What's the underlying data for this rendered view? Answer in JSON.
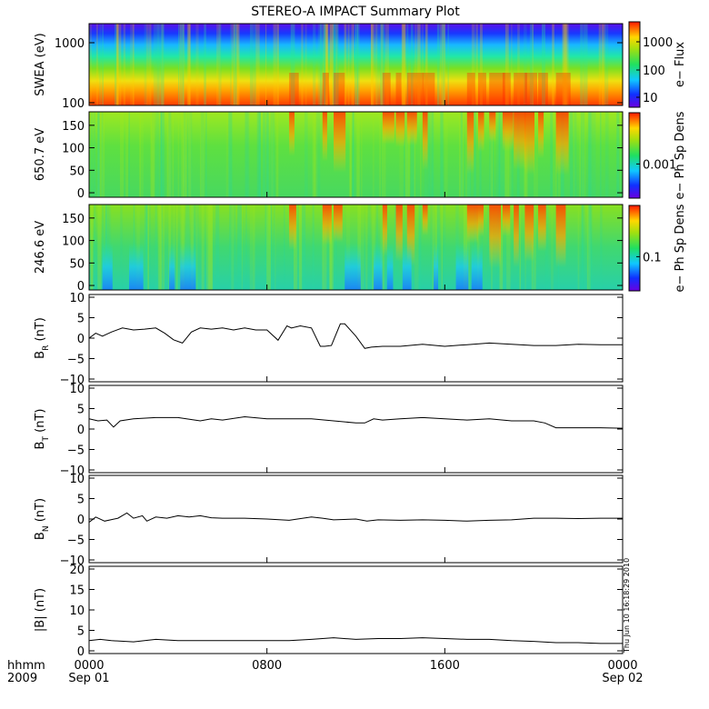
{
  "chart_data": {
    "type": "line",
    "title": "STEREO-A IMPACT Summary Plot",
    "x_axis": {
      "range": [
        "2009-09-01 00:00",
        "2009-09-02 00:00"
      ],
      "ticks": [
        {
          "time": "0000",
          "date": "Sep 01"
        },
        {
          "time": "0800",
          "date": ""
        },
        {
          "time": "1600",
          "date": ""
        },
        {
          "time": "0000",
          "date": "Sep 02"
        }
      ],
      "label_time": "hhmm",
      "label_year": "2009"
    },
    "panels": [
      {
        "type": "heatmap",
        "ylabel": "SWEA (eV)",
        "yscale": "log",
        "ylim": [
          100,
          2000
        ],
        "yticks": [
          "1000",
          "100"
        ],
        "colorbar": {
          "label": "e− Flux",
          "ticks": [
            "1000",
            "100",
            "10"
          ],
          "scale": "log"
        }
      },
      {
        "type": "heatmap",
        "ylabel": "650.7 eV",
        "ylim": [
          0,
          180
        ],
        "yticks": [
          "150",
          "100",
          "50",
          "0"
        ],
        "colorbar": {
          "label": "e− Ph Sp Dens",
          "ticks": [
            "0.001"
          ],
          "scale": "log"
        }
      },
      {
        "type": "heatmap",
        "ylabel": "246.6 eV",
        "ylim": [
          0,
          180
        ],
        "yticks": [
          "150",
          "100",
          "50",
          "0"
        ],
        "colorbar": {
          "label": "e− Ph Sp Dens",
          "ticks": [
            "0.1"
          ],
          "scale": "log"
        }
      },
      {
        "type": "line",
        "ylabel": "B",
        "ylabel_sub": "R",
        "ylabel_unit": " (nT)",
        "ylim": [
          -10,
          10
        ],
        "yticks": [
          "10",
          "5",
          "0",
          "−5",
          "−10"
        ],
        "series": [
          {
            "x": [
              0,
              0.3,
              0.6,
              1,
              1.5,
              2,
              2.5,
              3,
              3.4,
              3.8,
              4.2,
              4.6,
              5,
              5.5,
              6,
              6.5,
              7,
              7.5,
              8,
              8.5,
              8.9,
              9.1,
              9.5,
              10,
              10.4,
              10.6,
              10.9,
              11.3,
              11.5,
              12,
              12.4,
              12.7,
              13.2,
              14,
              15,
              16,
              17,
              18,
              19,
              20,
              21,
              22,
              23,
              24
            ],
            "y": [
              0,
              1.2,
              0.5,
              1.5,
              2.5,
              2,
              2.2,
              2.5,
              1.2,
              -0.4,
              -1.2,
              1.5,
              2.5,
              2.2,
              2.5,
              2,
              2.5,
              2,
              2,
              -0.5,
              3,
              2.5,
              3,
              2.5,
              -2,
              -2,
              -1.8,
              3.5,
              3.5,
              0.5,
              -2.5,
              -2.2,
              -2,
              -2,
              -1.5,
              -2,
              -1.6,
              -1.2,
              -1.5,
              -1.8,
              -1.8,
              -1.5,
              -1.6,
              -1.6
            ]
          }
        ]
      },
      {
        "type": "line",
        "ylabel": "B",
        "ylabel_sub": "T",
        "ylabel_unit": " (nT)",
        "ylim": [
          -10,
          10
        ],
        "yticks": [
          "10",
          "5",
          "0",
          "−5",
          "−10"
        ],
        "series": [
          {
            "x": [
              0,
              0.4,
              0.8,
              1.1,
              1.4,
              2,
              3,
              4,
              5,
              5.5,
              6,
              7,
              8,
              9,
              10,
              11,
              12,
              12.4,
              12.8,
              13.2,
              14,
              15,
              16,
              17,
              18,
              19,
              20,
              20.5,
              21,
              22,
              23,
              24
            ],
            "y": [
              2.5,
              2,
              2.2,
              0.5,
              2,
              2.5,
              2.8,
              2.8,
              2,
              2.5,
              2.2,
              3,
              2.5,
              2.5,
              2.5,
              2,
              1.5,
              1.5,
              2.5,
              2.2,
              2.5,
              2.8,
              2.5,
              2.2,
              2.5,
              2,
              2,
              1.5,
              0.3,
              0.3,
              0.3,
              0.2
            ]
          }
        ]
      },
      {
        "type": "line",
        "ylabel": "B",
        "ylabel_sub": "N",
        "ylabel_unit": " (nT)",
        "ylim": [
          -10,
          10
        ],
        "yticks": [
          "10",
          "5",
          "0",
          "−5",
          "−10"
        ],
        "series": [
          {
            "x": [
              0,
              0.3,
              0.7,
              1.3,
              1.7,
              2,
              2.4,
              2.6,
              3,
              3.5,
              4,
              4.5,
              5,
              5.5,
              6,
              7,
              8,
              9,
              10,
              10.5,
              11,
              12,
              12.5,
              13,
              14,
              15,
              16,
              17,
              18,
              19,
              20,
              21,
              22,
              23,
              24
            ],
            "y": [
              -0.8,
              0.5,
              -0.5,
              0.2,
              1.5,
              0.2,
              0.8,
              -0.5,
              0.5,
              0.2,
              0.8,
              0.5,
              0.8,
              0.3,
              0.2,
              0.2,
              0,
              -0.3,
              0.5,
              0.2,
              -0.2,
              0,
              -0.5,
              -0.2,
              -0.3,
              -0.2,
              -0.3,
              -0.5,
              -0.3,
              -0.2,
              0.2,
              0.2,
              0.1,
              0.2,
              0.2
            ]
          }
        ]
      },
      {
        "type": "line",
        "ylabel": "|B|",
        "ylabel_unit": " (nT)",
        "ylim": [
          0,
          20
        ],
        "yticks": [
          "20",
          "15",
          "10",
          "5",
          "0"
        ],
        "series": [
          {
            "x": [
              0,
              0.5,
              1,
              2,
              3,
              4,
              5,
              6,
              7,
              8,
              9,
              10,
              11,
              12,
              13,
              14,
              15,
              16,
              17,
              18,
              19,
              20,
              21,
              22,
              23,
              24
            ],
            "y": [
              2.5,
              2.8,
              2.5,
              2.2,
              2.8,
              2.5,
              2.5,
              2.5,
              2.5,
              2.5,
              2.5,
              2.8,
              3.2,
              2.8,
              3,
              3,
              3.2,
              3,
              2.8,
              2.8,
              2.5,
              2.3,
              2,
              2,
              1.8,
              1.8
            ]
          }
        ]
      }
    ],
    "stamp": "Thu Jun 10 16:18:29 2010"
  }
}
